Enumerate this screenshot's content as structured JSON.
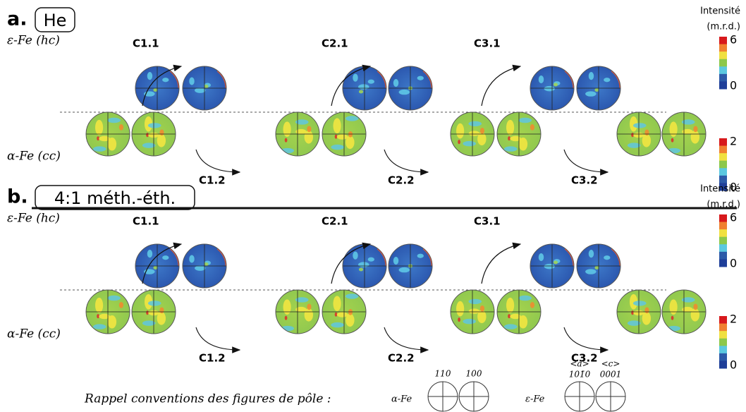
{
  "panels": [
    {
      "letter": "a.",
      "condition": "He",
      "colorbar_title": "Intensité",
      "colorbar_unit": "(m.r.d.)",
      "phase_hc": "ε-Fe (hc)",
      "phase_cc": "α-Fe (cc)",
      "steps_hc": [
        "C1.1",
        "C2.1",
        "C3.1"
      ],
      "steps_cc": [
        "C1.2",
        "C2.2",
        "C3.2"
      ],
      "hc_scale": [
        0,
        6
      ],
      "cc_scale": [
        0,
        2
      ]
    },
    {
      "letter": "b.",
      "condition": "4:1 méth.-éth.",
      "colorbar_title": "Intensité",
      "colorbar_unit": "(m.r.d.)",
      "phase_hc": "ε-Fe (hc)",
      "phase_cc": "α-Fe (cc)",
      "steps_hc": [
        "C1.1",
        "C2.1",
        "C3.1"
      ],
      "steps_cc": [
        "C1.2",
        "C2.2",
        "C3.2"
      ],
      "hc_scale": [
        0,
        6
      ],
      "cc_scale": [
        0,
        2
      ]
    }
  ],
  "legend": {
    "title": "Rappel conventions des figures de pôle :",
    "alpha_label": "α-Fe",
    "alpha_poles": [
      "110",
      "100"
    ],
    "eps_label": "ε-Fe",
    "eps_directions": [
      "<a>",
      "<c>"
    ],
    "eps_poles": [
      "101̄0",
      "0001"
    ]
  }
}
